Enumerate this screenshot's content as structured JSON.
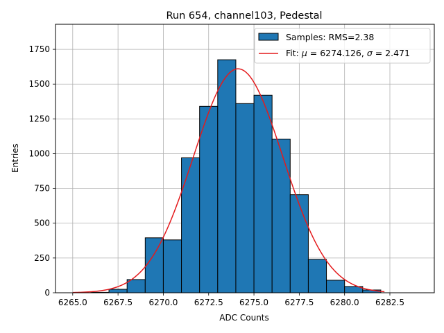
{
  "chart_data": {
    "type": "bar",
    "title": "Run 654, channel103, Pedestal",
    "xlabel": "ADC Counts",
    "ylabel": "Entries",
    "xlim": [
      6264.05,
      6284.95
    ],
    "ylim": [
      0,
      1930
    ],
    "grid": true,
    "legend_position": "top-right",
    "x_ticks": [
      6265.0,
      6267.5,
      6270.0,
      6272.5,
      6275.0,
      6277.5,
      6280.0,
      6282.5
    ],
    "x_tick_labels": [
      "6265.0",
      "6267.5",
      "6270.0",
      "6272.5",
      "6275.0",
      "6277.5",
      "6280.0",
      "6282.5"
    ],
    "y_ticks": [
      0,
      250,
      500,
      750,
      1000,
      1250,
      1500,
      1750
    ],
    "y_tick_labels": [
      "0",
      "250",
      "500",
      "750",
      "1000",
      "1250",
      "1500",
      "1750"
    ],
    "histogram": {
      "name": "Samples: RMS=2.38",
      "color": "#1f77b4",
      "edge_color": "#000000",
      "bins": [
        {
          "x0": 6266.0,
          "x1": 6267.0,
          "count": 3
        },
        {
          "x0": 6267.0,
          "x1": 6268.0,
          "count": 25
        },
        {
          "x0": 6268.0,
          "x1": 6269.0,
          "count": 95
        },
        {
          "x0": 6269.0,
          "x1": 6270.0,
          "count": 395
        },
        {
          "x0": 6270.0,
          "x1": 6271.0,
          "count": 380
        },
        {
          "x0": 6271.0,
          "x1": 6272.0,
          "count": 970
        },
        {
          "x0": 6272.0,
          "x1": 6273.0,
          "count": 1340
        },
        {
          "x0": 6273.0,
          "x1": 6274.0,
          "count": 1675
        },
        {
          "x0": 6274.0,
          "x1": 6275.0,
          "count": 1360
        },
        {
          "x0": 6275.0,
          "x1": 6276.0,
          "count": 1420
        },
        {
          "x0": 6276.0,
          "x1": 6277.0,
          "count": 1105
        },
        {
          "x0": 6277.0,
          "x1": 6278.0,
          "count": 705
        },
        {
          "x0": 6278.0,
          "x1": 6279.0,
          "count": 240
        },
        {
          "x0": 6279.0,
          "x1": 6280.0,
          "count": 90
        },
        {
          "x0": 6280.0,
          "x1": 6281.0,
          "count": 45
        },
        {
          "x0": 6281.0,
          "x1": 6282.0,
          "count": 20
        }
      ]
    },
    "fit": {
      "name": "Fit: μ = 6274.126, σ = 2.471",
      "name_parts": {
        "prefix": "Fit: ",
        "mu_symbol": "μ",
        "mu_value": " = 6274.126, ",
        "sigma_symbol": "σ",
        "sigma_value": " = 2.471"
      },
      "type": "gaussian",
      "mu": 6274.126,
      "sigma": 2.471,
      "amplitude": 1610,
      "x_range": [
        6265.0,
        6282.2
      ],
      "color": "#e41a1c"
    }
  }
}
